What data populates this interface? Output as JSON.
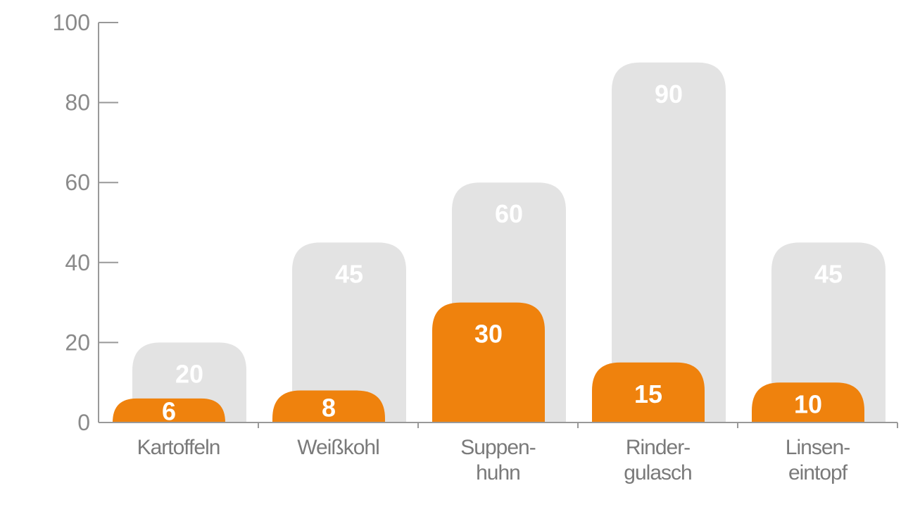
{
  "chart_data": {
    "type": "bar",
    "categories": [
      "Kartoffeln",
      "Weißkohl",
      "Suppen-\nhuhn",
      "Rinder-\ngulasch",
      "Linsen-\neintopf"
    ],
    "series": [
      {
        "color": "#e3e3e3",
        "values": [
          20,
          45,
          60,
          90,
          45
        ]
      },
      {
        "color": "#ef820d",
        "values": [
          6,
          8,
          30,
          15,
          10
        ]
      }
    ],
    "ylim": [
      0,
      100
    ],
    "yticks": [
      0,
      20,
      40,
      60,
      80,
      100
    ]
  }
}
